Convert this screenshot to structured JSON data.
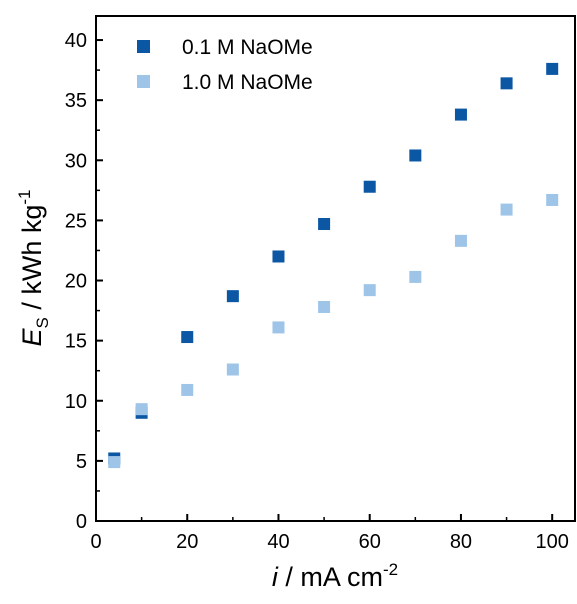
{
  "chart_data": {
    "type": "scatter",
    "x_axis": {
      "label_var": "i",
      "label_rest": " / mA cm",
      "label_sup": "-2",
      "range": [
        0,
        105
      ],
      "ticks": [
        "0",
        "20",
        "40",
        "60",
        "80",
        "100"
      ],
      "tick_values": [
        0,
        20,
        40,
        60,
        80,
        100
      ]
    },
    "y_axis": {
      "label_var": "E",
      "label_sub": "S",
      "label_rest": " / kWh kg",
      "label_sup": "-1",
      "range": [
        0,
        42
      ],
      "ticks": [
        "0",
        "5",
        "10",
        "15",
        "20",
        "25",
        "30",
        "35",
        "40"
      ],
      "tick_values": [
        0,
        5,
        10,
        15,
        20,
        25,
        30,
        35,
        40
      ]
    },
    "grid": false,
    "legend_position": "top-left",
    "series": [
      {
        "name": "0.1 M NaOMe",
        "color": "#0b57a4",
        "marker": "square",
        "x": [
          4,
          10,
          20,
          30,
          40,
          50,
          60,
          70,
          80,
          90,
          100
        ],
        "y": [
          5.2,
          9.0,
          15.3,
          18.7,
          22.0,
          24.7,
          27.8,
          30.4,
          33.8,
          36.4,
          37.6
        ]
      },
      {
        "name": "1.0 M NaOMe",
        "color": "#9ec5e8",
        "marker": "square",
        "x": [
          4,
          10,
          20,
          30,
          40,
          50,
          60,
          70,
          80,
          90,
          100
        ],
        "y": [
          4.9,
          9.3,
          10.9,
          12.6,
          16.1,
          17.8,
          19.2,
          20.3,
          23.3,
          25.9,
          26.7
        ]
      }
    ]
  }
}
